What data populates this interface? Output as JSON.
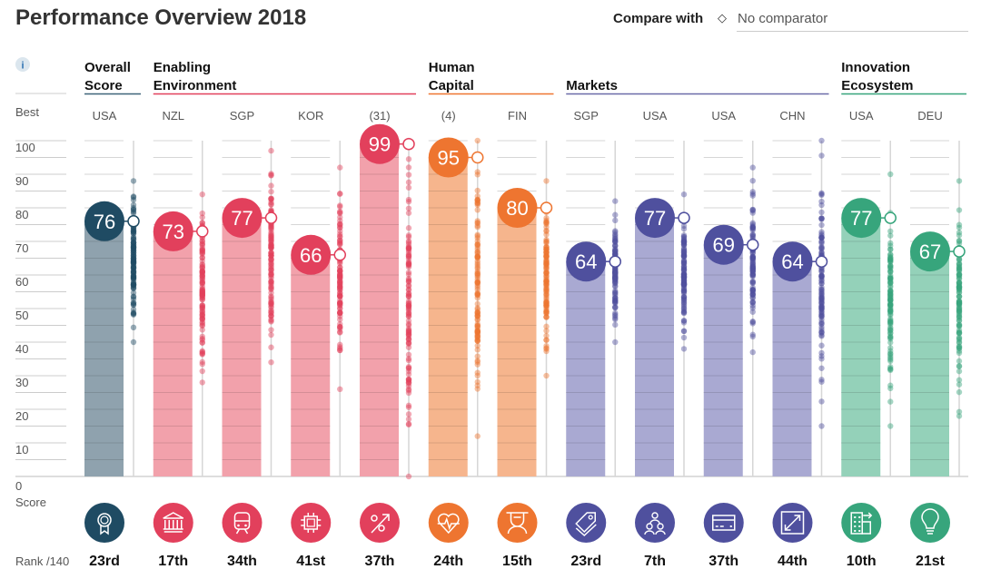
{
  "header": {
    "title": "Performance Overview 2018",
    "compare_label": "Compare with",
    "compare_icon": "diamond-icon",
    "comparator_value": "No comparator"
  },
  "info_icon": "info-icon",
  "axis": {
    "best_label": "Best",
    "score_label": "Score",
    "rank_label": "Rank /140",
    "ticks": [
      "0",
      "10",
      "20",
      "30",
      "40",
      "50",
      "60",
      "70",
      "80",
      "90",
      "100"
    ]
  },
  "colors": {
    "overall": {
      "main": "#1f4b63",
      "bar": "#8fa2ae",
      "line": "#3e6379"
    },
    "enabling": {
      "main": "#e2405c",
      "bar": "#f2a1ab",
      "line": "#e2405c"
    },
    "human": {
      "main": "#ee7530",
      "bar": "#f6b58d",
      "line": "#ee7530"
    },
    "markets": {
      "main": "#4f509e",
      "bar": "#a9a9d2",
      "line": "#6a6aa8"
    },
    "innovation": {
      "main": "#37a57c",
      "bar": "#94d1b9",
      "line": "#37a57c"
    }
  },
  "groups": [
    {
      "key": "overall",
      "line1": "Overall",
      "line2": "Score"
    },
    {
      "key": "enabling",
      "line1": "Enabling",
      "line2": "Environment"
    },
    {
      "key": "human",
      "line1": "Human",
      "line2": "Capital"
    },
    {
      "key": "markets",
      "line1": "",
      "line2": "Markets"
    },
    {
      "key": "innovation",
      "line1": "Innovation",
      "line2": "Ecosystem"
    }
  ],
  "chart_data": {
    "type": "bar",
    "ylim": [
      0,
      100
    ],
    "yticks": [
      0,
      10,
      20,
      30,
      40,
      50,
      60,
      70,
      80,
      90,
      100
    ],
    "grid": true,
    "columns": [
      {
        "group": "overall",
        "best": "USA",
        "score": 76,
        "rank": "23rd",
        "icon": "award-ribbon-icon",
        "peer_range": [
          40,
          88
        ]
      },
      {
        "group": "enabling",
        "best": "NZL",
        "score": 73,
        "rank": "17th",
        "icon": "institution-building-icon",
        "peer_range": [
          28,
          84
        ]
      },
      {
        "group": "enabling",
        "best": "SGP",
        "score": 77,
        "rank": "34th",
        "icon": "train-icon",
        "peer_range": [
          34,
          97
        ]
      },
      {
        "group": "enabling",
        "best": "KOR",
        "score": 66,
        "rank": "41st",
        "icon": "microchip-icon",
        "peer_range": [
          26,
          92
        ]
      },
      {
        "group": "enabling",
        "best": "(31)",
        "score": 99,
        "rank": "37th",
        "icon": "percent-arrow-icon",
        "peer_range": [
          0,
          100
        ]
      },
      {
        "group": "human",
        "best": "(4)",
        "score": 95,
        "rank": "24th",
        "icon": "heart-pulse-icon",
        "peer_range": [
          12,
          100
        ]
      },
      {
        "group": "human",
        "best": "FIN",
        "score": 80,
        "rank": "15th",
        "icon": "graduate-icon",
        "peer_range": [
          30,
          88
        ]
      },
      {
        "group": "markets",
        "best": "SGP",
        "score": 64,
        "rank": "23rd",
        "icon": "price-tag-icon",
        "peer_range": [
          40,
          82
        ]
      },
      {
        "group": "markets",
        "best": "USA",
        "score": 77,
        "rank": "7th",
        "icon": "people-network-icon",
        "peer_range": [
          38,
          84
        ]
      },
      {
        "group": "markets",
        "best": "USA",
        "score": 69,
        "rank": "37th",
        "icon": "credit-card-icon",
        "peer_range": [
          37,
          92
        ]
      },
      {
        "group": "markets",
        "best": "CHN",
        "score": 64,
        "rank": "44th",
        "icon": "expand-arrows-icon",
        "peer_range": [
          15,
          100
        ]
      },
      {
        "group": "innovation",
        "best": "USA",
        "score": 77,
        "rank": "10th",
        "icon": "buildings-arrow-icon",
        "peer_range": [
          15,
          90
        ]
      },
      {
        "group": "innovation",
        "best": "DEU",
        "score": 67,
        "rank": "21st",
        "icon": "lightbulb-icon",
        "peer_range": [
          18,
          88
        ]
      }
    ]
  }
}
